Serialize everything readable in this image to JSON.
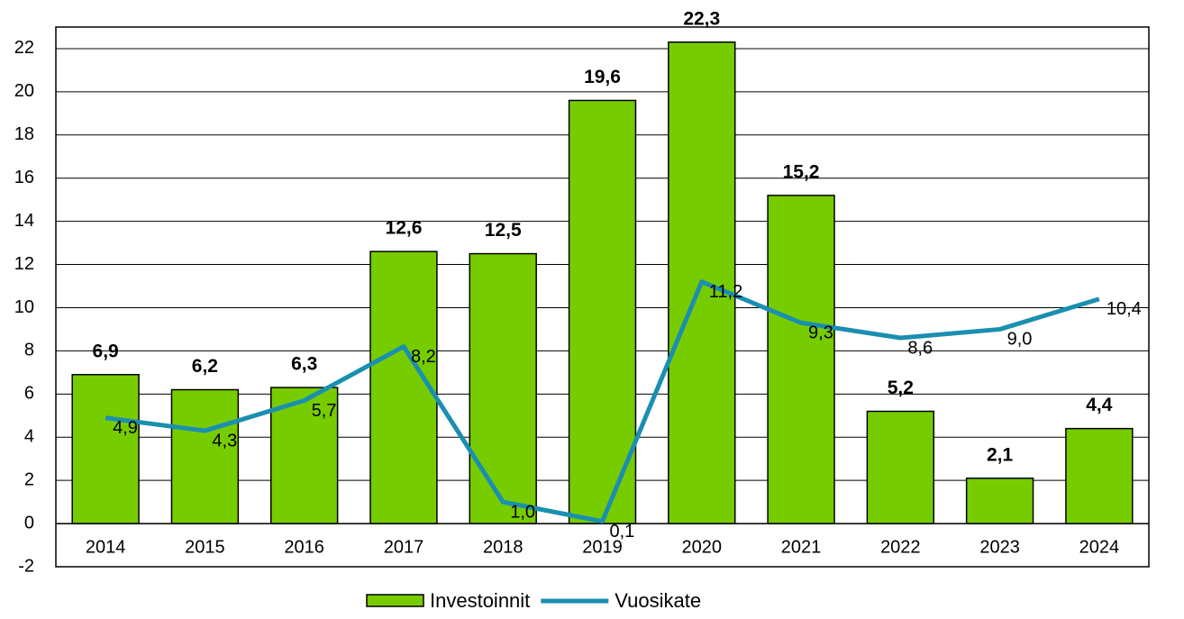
{
  "chart_data": {
    "type": "bar_line",
    "categories": [
      "2014",
      "2015",
      "2016",
      "2017",
      "2018",
      "2019",
      "2020",
      "2021",
      "2022",
      "2023",
      "2024"
    ],
    "series": [
      {
        "name": "Investoinnit",
        "type": "bar",
        "color": "#77cc00",
        "values": [
          6.9,
          6.2,
          6.3,
          12.6,
          12.5,
          19.6,
          22.3,
          15.2,
          5.2,
          2.1,
          4.4
        ],
        "value_labels": [
          "6,9",
          "6,2",
          "6,3",
          "12,6",
          "12,5",
          "19,6",
          "22,3",
          "15,2",
          "5,2",
          "2,1",
          "4,4"
        ]
      },
      {
        "name": "Vuosikate",
        "type": "line",
        "color": "#1a8fb0",
        "values": [
          4.9,
          4.3,
          5.7,
          8.2,
          1.0,
          0.1,
          11.2,
          9.3,
          8.6,
          9.0,
          10.4
        ],
        "value_labels": [
          "4,9",
          "4,3",
          "5,7",
          "8,2",
          "1,0",
          "0,1",
          "11,2",
          "9,3",
          "8,6",
          "9,0",
          "10,4"
        ]
      }
    ],
    "ylim": [
      -2,
      23
    ],
    "yticks": [
      -2,
      0,
      2,
      4,
      6,
      8,
      10,
      12,
      14,
      16,
      18,
      20,
      22
    ],
    "grid": true
  }
}
